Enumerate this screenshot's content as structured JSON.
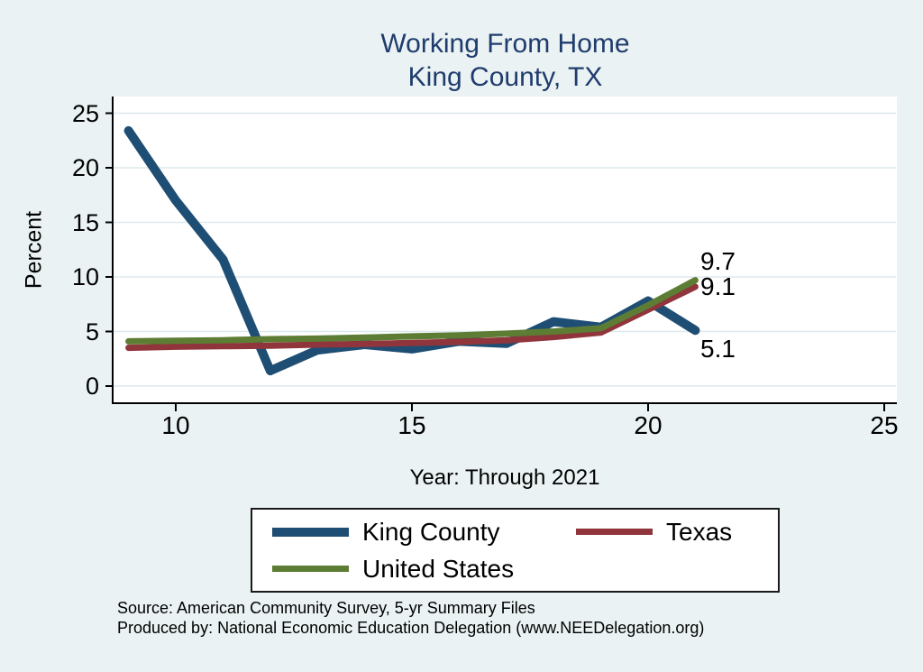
{
  "chart_data": {
    "type": "line",
    "title_line1": "Working From Home",
    "title_line2": "King County, TX",
    "xlabel": "Year: Through 2021",
    "ylabel": "Percent",
    "x": [
      9,
      10,
      11,
      12,
      13,
      14,
      15,
      16,
      17,
      18,
      19,
      20,
      21
    ],
    "x_ticks": [
      10,
      15,
      20,
      25
    ],
    "y_ticks": [
      0,
      5,
      10,
      15,
      20,
      25
    ],
    "xlim": [
      8.7,
      25.3
    ],
    "ylim": [
      0,
      25
    ],
    "grid": "horizontal",
    "legend": {
      "position": "bottom",
      "columns": 2
    },
    "series": [
      {
        "name": "King County",
        "color": "#1f4e74",
        "line_width": 10,
        "values": [
          23.4,
          17.0,
          11.6,
          1.4,
          3.3,
          3.8,
          3.4,
          4.1,
          3.9,
          5.9,
          5.4,
          7.8,
          5.1
        ],
        "end_label": "5.1"
      },
      {
        "name": "Texas",
        "color": "#90353b",
        "line_width": 7,
        "values": [
          3.5,
          3.6,
          3.65,
          3.7,
          3.8,
          3.85,
          3.95,
          4.05,
          4.2,
          4.5,
          4.9,
          7.0,
          9.1
        ],
        "end_label": "9.1"
      },
      {
        "name": "United States",
        "color": "#5d7d34",
        "line_width": 7,
        "values": [
          4.1,
          4.15,
          4.2,
          4.3,
          4.35,
          4.45,
          4.55,
          4.65,
          4.8,
          5.0,
          5.3,
          7.4,
          9.7
        ],
        "end_label": "9.7"
      }
    ],
    "source_line1": "Source: American Community Survey, 5-yr Summary Files",
    "source_line2": "Produced by: National Economic Education Delegation (www.NEEDelegation.org)",
    "colors": {
      "background": "#eaf2f3",
      "plot_background": "#ffffff",
      "grid": "#dde9ee",
      "axis": "#000000",
      "title": "#1f3c6d"
    }
  }
}
